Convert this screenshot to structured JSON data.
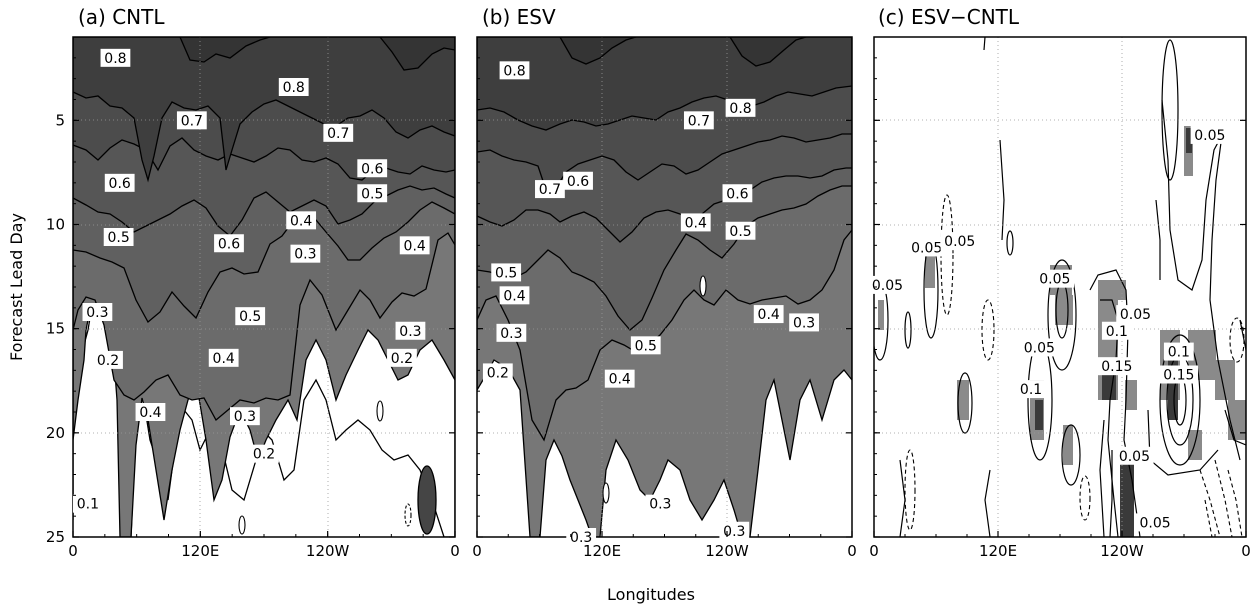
{
  "figure": {
    "xlabel": "Longitudes",
    "ylabel": "Forecast Lead Day"
  },
  "chart_data": [
    {
      "type": "heatmap",
      "title": "(a)  CNTL",
      "xlabel": "Longitudes",
      "ylabel": "Forecast Lead Day",
      "xticks": [
        {
          "lon": 0,
          "label": "0"
        },
        {
          "lon": 120,
          "label": "120E"
        },
        {
          "lon": 240,
          "label": "120W"
        },
        {
          "lon": 360,
          "label": "0"
        }
      ],
      "xlim": [
        0,
        360
      ],
      "ylim": [
        1,
        25
      ],
      "yticks": [
        5,
        10,
        15,
        20,
        25
      ],
      "y_inverted": true,
      "grid": "dotted",
      "contour_levels": [
        0.1,
        0.2,
        0.3,
        0.4,
        0.5,
        0.6,
        0.7,
        0.8
      ],
      "contour_labels": [
        {
          "lon": 40,
          "day": 2.0,
          "text": "0.8"
        },
        {
          "lon": 208,
          "day": 3.4,
          "text": "0.8"
        },
        {
          "lon": 112,
          "day": 5.0,
          "text": "0.7"
        },
        {
          "lon": 250,
          "day": 5.6,
          "text": "0.7"
        },
        {
          "lon": 44,
          "day": 8.0,
          "text": "0.6"
        },
        {
          "lon": 282,
          "day": 7.3,
          "text": "0.6"
        },
        {
          "lon": 282,
          "day": 8.5,
          "text": "0.5"
        },
        {
          "lon": 215,
          "day": 9.8,
          "text": "0.4"
        },
        {
          "lon": 43,
          "day": 10.6,
          "text": "0.5"
        },
        {
          "lon": 147,
          "day": 10.9,
          "text": "0.6"
        },
        {
          "lon": 219,
          "day": 11.4,
          "text": "0.3"
        },
        {
          "lon": 322,
          "day": 11.0,
          "text": "0.4"
        },
        {
          "lon": 23,
          "day": 14.2,
          "text": "0.3"
        },
        {
          "lon": 167,
          "day": 14.4,
          "text": "0.5"
        },
        {
          "lon": 318,
          "day": 15.1,
          "text": "0.3"
        },
        {
          "lon": 33,
          "day": 16.5,
          "text": "0.2"
        },
        {
          "lon": 142,
          "day": 16.4,
          "text": "0.4"
        },
        {
          "lon": 310,
          "day": 16.4,
          "text": "0.2"
        },
        {
          "lon": 73,
          "day": 19.0,
          "text": "0.4"
        },
        {
          "lon": 162,
          "day": 19.2,
          "text": "0.3"
        },
        {
          "lon": 180,
          "day": 21.0,
          "text": "0.2"
        },
        {
          "lon": 14,
          "day": 23.4,
          "text": "0.1"
        }
      ]
    },
    {
      "type": "heatmap",
      "title": "(b)  ESV",
      "xlabel": "Longitudes",
      "ylabel": "Forecast Lead Day",
      "xticks": [
        {
          "lon": 0,
          "label": "0"
        },
        {
          "lon": 120,
          "label": "120E"
        },
        {
          "lon": 240,
          "label": "120W"
        },
        {
          "lon": 360,
          "label": "0"
        }
      ],
      "xlim": [
        0,
        360
      ],
      "ylim": [
        1,
        25
      ],
      "yticks": [
        5,
        10,
        15,
        20,
        25
      ],
      "y_inverted": true,
      "grid": "dotted",
      "contour_levels": [
        0.2,
        0.3,
        0.4,
        0.5,
        0.6,
        0.7,
        0.8
      ],
      "contour_labels": [
        {
          "lon": 36,
          "day": 2.6,
          "text": "0.8"
        },
        {
          "lon": 253,
          "day": 4.4,
          "text": "0.8"
        },
        {
          "lon": 213,
          "day": 5.0,
          "text": "0.7"
        },
        {
          "lon": 70,
          "day": 8.3,
          "text": "0.7"
        },
        {
          "lon": 97,
          "day": 7.9,
          "text": "0.6"
        },
        {
          "lon": 250,
          "day": 8.5,
          "text": "0.6"
        },
        {
          "lon": 210,
          "day": 9.9,
          "text": "0.4"
        },
        {
          "lon": 253,
          "day": 10.3,
          "text": "0.5"
        },
        {
          "lon": 28,
          "day": 12.3,
          "text": "0.5"
        },
        {
          "lon": 36,
          "day": 13.4,
          "text": "0.4"
        },
        {
          "lon": 280,
          "day": 14.3,
          "text": "0.4"
        },
        {
          "lon": 314,
          "day": 14.7,
          "text": "0.3"
        },
        {
          "lon": 33,
          "day": 15.2,
          "text": "0.3"
        },
        {
          "lon": 162,
          "day": 15.8,
          "text": "0.5"
        },
        {
          "lon": 137,
          "day": 17.4,
          "text": "0.4"
        },
        {
          "lon": 20,
          "day": 17.1,
          "text": "0.2"
        },
        {
          "lon": 176,
          "day": 23.4,
          "text": "0.3"
        },
        {
          "lon": 100,
          "day": 25.0,
          "text": "0.3"
        },
        {
          "lon": 247,
          "day": 24.7,
          "text": "0.3"
        }
      ]
    },
    {
      "type": "heatmap",
      "title": "(c)  ESV−CNTL",
      "xlabel": "Longitudes",
      "ylabel": "Forecast Lead Day",
      "xticks": [
        {
          "lon": 0,
          "label": "0"
        },
        {
          "lon": 120,
          "label": "120E"
        },
        {
          "lon": 240,
          "label": "120W"
        },
        {
          "lon": 360,
          "label": "0"
        }
      ],
      "xlim": [
        0,
        360
      ],
      "ylim": [
        1,
        25
      ],
      "yticks": [
        5,
        10,
        15,
        20,
        25
      ],
      "y_inverted": true,
      "grid": "dotted",
      "contour_levels": [
        -0.05,
        0.05,
        0.1,
        0.15
      ],
      "contour_labels": [
        {
          "lon": 325,
          "day": 5.7,
          "text": "0.05"
        },
        {
          "lon": 51,
          "day": 11.1,
          "text": "0.05"
        },
        {
          "lon": 83,
          "day": 10.8,
          "text": "0.05"
        },
        {
          "lon": 13,
          "day": 12.9,
          "text": "0.05"
        },
        {
          "lon": 175,
          "day": 12.6,
          "text": "0.05"
        },
        {
          "lon": 253,
          "day": 14.3,
          "text": "0.05"
        },
        {
          "lon": 160,
          "day": 15.9,
          "text": "0.05"
        },
        {
          "lon": 235,
          "day": 15.1,
          "text": "0.1"
        },
        {
          "lon": 235,
          "day": 16.8,
          "text": "0.15"
        },
        {
          "lon": 295,
          "day": 16.1,
          "text": "0.1"
        },
        {
          "lon": 295,
          "day": 17.2,
          "text": "0.15"
        },
        {
          "lon": 152,
          "day": 17.9,
          "text": "0.1"
        },
        {
          "lon": 252,
          "day": 21.1,
          "text": "0.05"
        },
        {
          "lon": 272,
          "day": 24.3,
          "text": "0.05"
        }
      ]
    }
  ]
}
